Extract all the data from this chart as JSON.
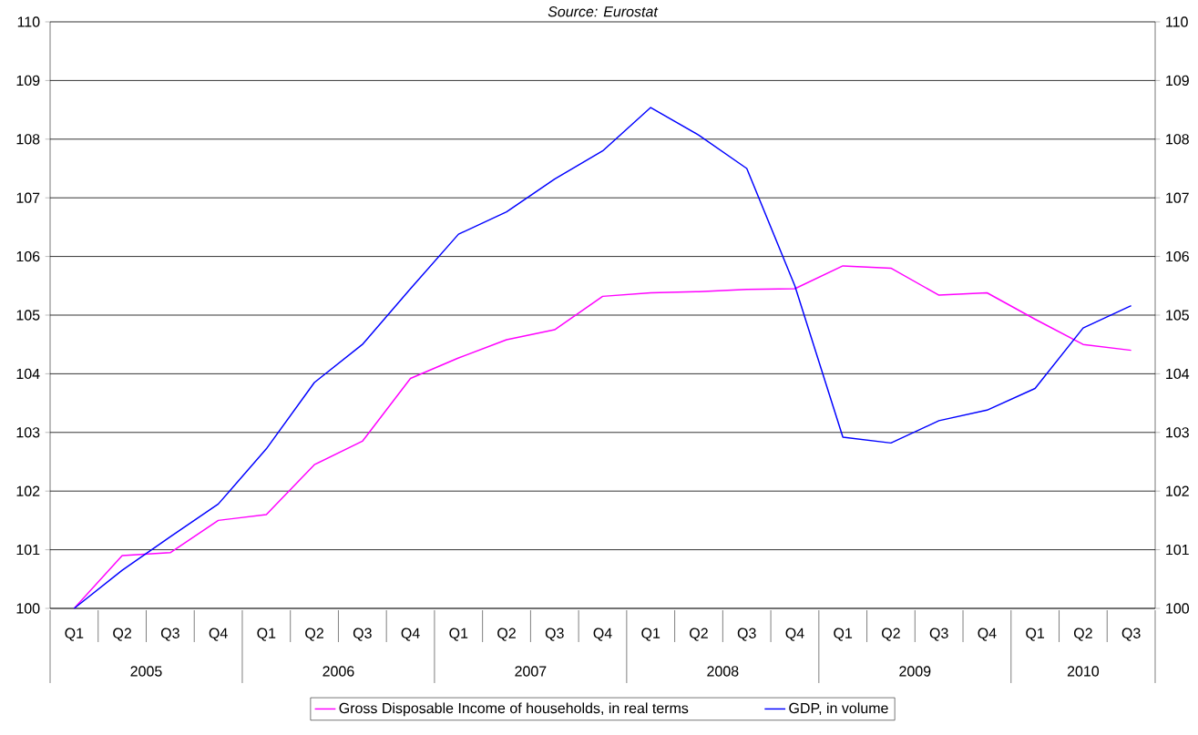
{
  "chart_data": {
    "type": "line",
    "categories": [
      "Q1",
      "Q2",
      "Q3",
      "Q4",
      "Q1",
      "Q2",
      "Q3",
      "Q4",
      "Q1",
      "Q2",
      "Q3",
      "Q4",
      "Q1",
      "Q2",
      "Q3",
      "Q4",
      "Q1",
      "Q2",
      "Q3",
      "Q4",
      "Q1",
      "Q2",
      "Q3"
    ],
    "series": [
      {
        "name": "Gross Disposable Income of households, in real terms",
        "color": "#ff00ff",
        "values": [
          100,
          100.9,
          100.95,
          101.5,
          101.6,
          102.45,
          102.85,
          103.92,
          104.27,
          104.58,
          104.75,
          105.32,
          105.38,
          105.4,
          105.44,
          105.45,
          105.84,
          105.8,
          105.34,
          105.38,
          104.93,
          104.5,
          104.4
        ]
      },
      {
        "name": "GDP, in volume",
        "color": "#0000ff",
        "values": [
          100,
          100.65,
          101.22,
          101.78,
          102.72,
          103.85,
          104.5,
          105.45,
          106.38,
          106.76,
          107.32,
          107.8,
          108.54,
          108.07,
          107.5,
          105.5,
          102.92,
          102.82,
          103.2,
          103.38,
          103.75,
          104.78,
          105.16
        ]
      }
    ],
    "annotations": [
      "Source: Eurostat",
      "2005",
      "2006",
      "2007",
      "2008",
      "2009",
      "2010"
    ],
    "ylim": [
      100,
      110
    ],
    "yticks": [
      100,
      101,
      102,
      103,
      104,
      105,
      106,
      107,
      108,
      109,
      110
    ],
    "y2lim": [
      100,
      110
    ],
    "y2ticks": [
      100,
      101,
      102,
      103,
      104,
      105,
      106,
      107,
      108,
      109,
      110
    ],
    "grid": "y",
    "legend": "bottom",
    "marker": "none",
    "line_style": "solid"
  }
}
